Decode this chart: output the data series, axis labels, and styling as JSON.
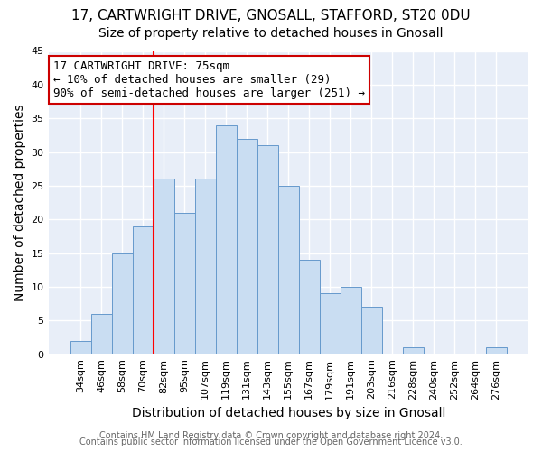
{
  "title": "17, CARTWRIGHT DRIVE, GNOSALL, STAFFORD, ST20 0DU",
  "subtitle": "Size of property relative to detached houses in Gnosall",
  "xlabel": "Distribution of detached houses by size in Gnosall",
  "ylabel": "Number of detached properties",
  "footer_lines": [
    "Contains HM Land Registry data © Crown copyright and database right 2024.",
    "Contains public sector information licensed under the Open Government Licence v3.0."
  ],
  "bin_labels": [
    "34sqm",
    "46sqm",
    "58sqm",
    "70sqm",
    "82sqm",
    "95sqm",
    "107sqm",
    "119sqm",
    "131sqm",
    "143sqm",
    "155sqm",
    "167sqm",
    "179sqm",
    "191sqm",
    "203sqm",
    "216sqm",
    "228sqm",
    "240sqm",
    "252sqm",
    "264sqm",
    "276sqm"
  ],
  "bin_values": [
    2,
    6,
    15,
    19,
    26,
    21,
    26,
    34,
    32,
    31,
    25,
    14,
    9,
    10,
    7,
    0,
    1,
    0,
    0,
    0,
    1
  ],
  "bar_color": "#c9ddf2",
  "bar_edge_color": "#6699cc",
  "vline_x_index": 3.5,
  "vline_color": "red",
  "ylim": [
    0,
    45
  ],
  "yticks": [
    0,
    5,
    10,
    15,
    20,
    25,
    30,
    35,
    40,
    45
  ],
  "annotation_line1": "17 CARTWRIGHT DRIVE: 75sqm",
  "annotation_line2": "← 10% of detached houses are smaller (29)",
  "annotation_line3": "90% of semi-detached houses are larger (251) →",
  "background_color": "#ffffff",
  "plot_bg_color": "#e8eef8",
  "grid_color": "#ffffff",
  "title_fontsize": 11,
  "subtitle_fontsize": 10,
  "axis_label_fontsize": 10,
  "tick_fontsize": 8,
  "annotation_fontsize": 9,
  "footer_fontsize": 7
}
